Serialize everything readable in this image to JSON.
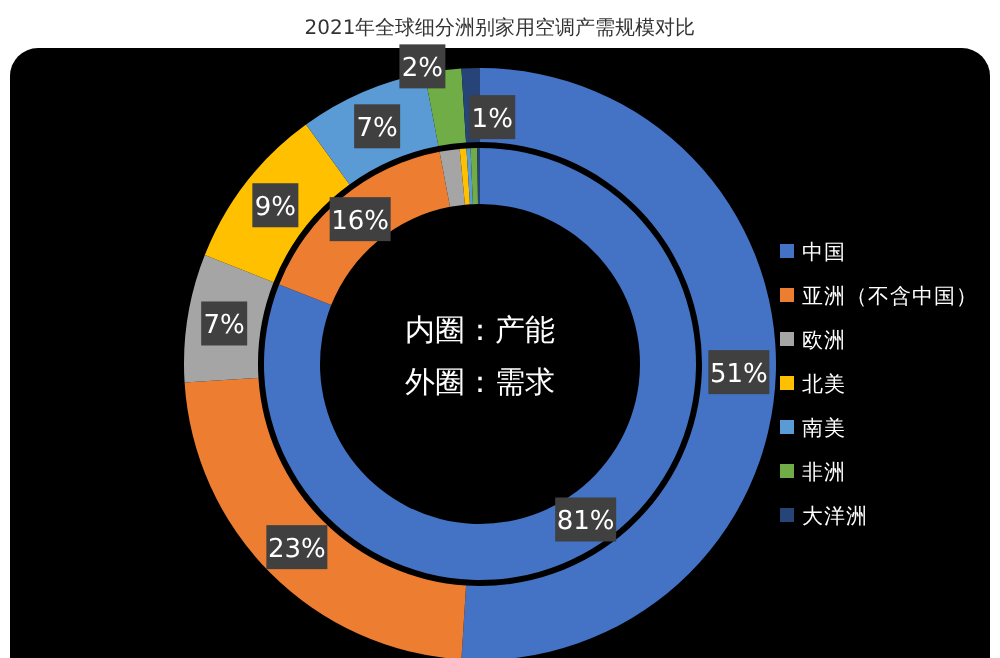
{
  "chart_data": {
    "type": "donut",
    "title": "2021年全球细分洲别家用空调产需规模对比",
    "categories": [
      "中国",
      "亚洲（不含中国）",
      "欧洲",
      "北美",
      "南美",
      "非洲",
      "大洋洲"
    ],
    "colors": [
      "#4472c4",
      "#ed7d31",
      "#a5a5a5",
      "#ffc000",
      "#5b9bd5",
      "#70ad47",
      "#264478"
    ],
    "series": [
      {
        "values": [
          81,
          16,
          1.5,
          0.5,
          0.3,
          0.5,
          0.2
        ],
        "value_labels": [
          "81%",
          "16%",
          null,
          null,
          null,
          null,
          null
        ]
      },
      {
        "values": [
          51,
          23,
          7,
          9,
          7,
          2,
          1
        ],
        "value_labels": [
          "51%",
          "23%",
          "7%",
          "9%",
          "7%",
          "2%",
          "1%"
        ]
      }
    ],
    "annotations": [
      "内圈：产能",
      "外圈：需求"
    ],
    "legend": "right"
  }
}
